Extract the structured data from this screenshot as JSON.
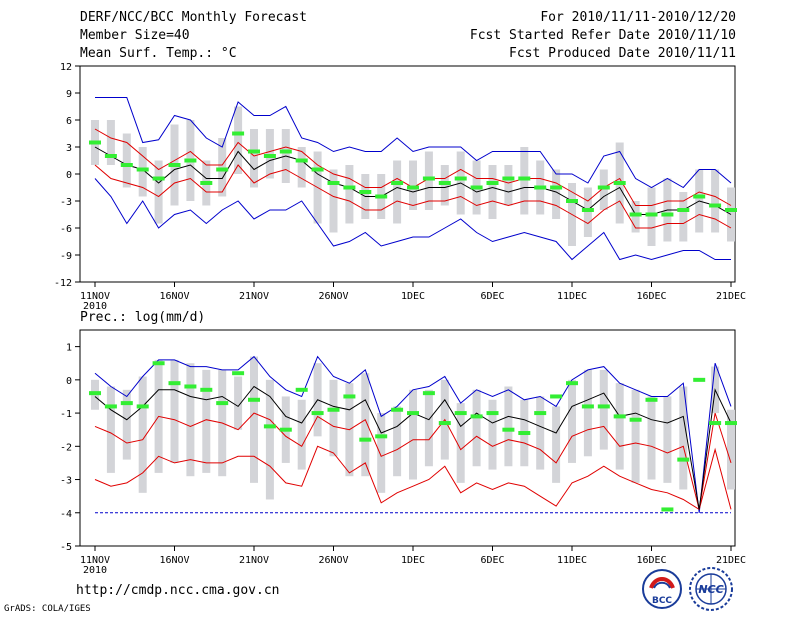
{
  "header": {
    "title": "DERF/NCC/BCC Monthly Forecast",
    "member_size": "Member Size=40",
    "variable": "Mean Surf. Temp.: °C",
    "period": "For 2010/11/11-2010/12/20",
    "started": "Fcst Started Refer Date 2010/11/10",
    "produced": "Fcst Produced Date 2010/11/11"
  },
  "footer": {
    "url": "http://cmdp.ncc.cma.gov.cn",
    "credit": "GrADS: COLA/IGES",
    "logo_bcc": "BCC",
    "logo_ncc": "NCC"
  },
  "colors": {
    "mean": "#000000",
    "spread": "#e00000",
    "extreme": "#0000cc",
    "box": "#d3d4d8",
    "median": "#33ee33"
  },
  "chart_data": [
    {
      "type": "box-ensemble",
      "title": "Mean Surf. Temp.: °C",
      "xlabel": "",
      "ylabel": "°C",
      "ylim": [
        -12,
        12
      ],
      "yticks": [
        12,
        9,
        6,
        3,
        0,
        -3,
        -6,
        -9,
        -12
      ],
      "x_days": 40,
      "xticks": [
        {
          "day": 1,
          "label": "11NOV",
          "sub": "2010"
        },
        {
          "day": 6,
          "label": "16NOV"
        },
        {
          "day": 11,
          "label": "21NOV"
        },
        {
          "day": 16,
          "label": "26NOV"
        },
        {
          "day": 21,
          "label": "1DEC"
        },
        {
          "day": 26,
          "label": "6DEC"
        },
        {
          "day": 31,
          "label": "11DEC"
        },
        {
          "day": 36,
          "label": "16DEC"
        },
        {
          "day": 41,
          "label": "21DEC"
        }
      ],
      "mean": [
        3.0,
        2.0,
        1.0,
        0.5,
        -1.0,
        0.5,
        1.0,
        -0.5,
        -0.5,
        2.5,
        0.5,
        1.5,
        2.0,
        1.5,
        0.0,
        -1.0,
        -1.5,
        -2.5,
        -2.5,
        -1.5,
        -2.0,
        -1.5,
        -1.5,
        -1.0,
        -2.0,
        -1.5,
        -2.0,
        -1.5,
        -1.5,
        -2.0,
        -3.0,
        -4.0,
        -2.5,
        -1.5,
        -4.5,
        -4.5,
        -4.0,
        -4.0,
        -3.0,
        -3.5,
        -4.5
      ],
      "upper_spread": [
        5.0,
        4.0,
        3.5,
        2.0,
        0.5,
        1.5,
        2.5,
        1.0,
        1.0,
        3.5,
        2.0,
        2.5,
        3.0,
        2.5,
        1.0,
        0.0,
        -0.5,
        -1.5,
        -1.5,
        -0.5,
        -1.5,
        -0.5,
        -0.5,
        0.5,
        -0.5,
        -0.5,
        -1.0,
        -0.5,
        -0.5,
        -1.0,
        -2.0,
        -3.0,
        -1.5,
        -0.5,
        -3.5,
        -3.5,
        -3.0,
        -3.0,
        -2.0,
        -2.5,
        -3.5
      ],
      "lower_spread": [
        1.0,
        -0.5,
        -1.0,
        -1.5,
        -2.5,
        -1.0,
        -0.5,
        -2.0,
        -2.0,
        1.0,
        -1.0,
        0.0,
        0.5,
        -0.5,
        -1.5,
        -2.5,
        -3.0,
        -4.0,
        -4.0,
        -3.0,
        -3.5,
        -3.0,
        -3.0,
        -2.5,
        -3.5,
        -3.0,
        -3.5,
        -3.0,
        -3.0,
        -3.5,
        -4.5,
        -5.5,
        -4.0,
        -3.0,
        -6.0,
        -6.0,
        -5.5,
        -5.5,
        -4.5,
        -5.0,
        -6.0
      ],
      "upper_extreme": [
        8.5,
        8.5,
        8.5,
        3.5,
        3.8,
        6.5,
        6.0,
        4.0,
        3.0,
        8.0,
        6.5,
        6.5,
        7.5,
        4.0,
        3.5,
        2.5,
        3.0,
        2.5,
        2.5,
        4.0,
        2.5,
        3.0,
        3.0,
        3.0,
        1.5,
        2.5,
        2.5,
        2.5,
        2.5,
        0.0,
        0.0,
        -1.0,
        2.0,
        2.5,
        -0.5,
        -1.5,
        -0.5,
        -1.5,
        0.5,
        0.5,
        -1.0
      ],
      "lower_extreme": [
        -0.5,
        -2.5,
        -5.5,
        -3.0,
        -6.0,
        -4.5,
        -4.0,
        -5.5,
        -4.0,
        -3.0,
        -5.0,
        -4.0,
        -4.0,
        -3.0,
        -5.5,
        -8.0,
        -7.5,
        -6.5,
        -8.0,
        -7.5,
        -7.0,
        -7.0,
        -6.0,
        -5.0,
        -6.5,
        -7.5,
        -7.0,
        -6.5,
        -7.0,
        -7.5,
        -9.5,
        -8.0,
        -6.5,
        -9.5,
        -9.0,
        -9.5,
        -9.0,
        -8.5,
        -8.5,
        -9.5,
        -9.5
      ],
      "box_max": [
        6.0,
        6.0,
        4.5,
        3.0,
        1.5,
        5.5,
        6.0,
        1.5,
        4.0,
        7.5,
        5.0,
        5.0,
        5.0,
        3.0,
        2.5,
        0.5,
        1.0,
        0.0,
        0.0,
        1.5,
        1.5,
        2.5,
        1.0,
        2.5,
        1.5,
        1.0,
        1.0,
        3.0,
        1.5,
        0.5,
        -1.0,
        -1.5,
        0.5,
        3.5,
        -3.0,
        -1.5,
        -0.5,
        -2.0,
        0.5,
        0.5,
        -1.5
      ],
      "box_min": [
        1.0,
        1.0,
        -1.5,
        -2.5,
        -5.5,
        -3.5,
        -3.0,
        -3.5,
        -2.5,
        0.0,
        -1.5,
        -0.5,
        -1.0,
        -1.5,
        -5.5,
        -6.5,
        -5.5,
        -5.0,
        -5.0,
        -5.5,
        -4.0,
        -4.0,
        -3.5,
        -4.5,
        -4.5,
        -5.0,
        -3.5,
        -4.5,
        -4.5,
        -5.0,
        -8.0,
        -7.0,
        -4.0,
        -5.5,
        -6.5,
        -8.0,
        -7.5,
        -7.5,
        -6.5,
        -6.5,
        -7.5
      ],
      "median": [
        3.5,
        2.0,
        1.0,
        0.5,
        -0.5,
        1.0,
        1.5,
        -1.0,
        0.5,
        4.5,
        2.5,
        2.0,
        2.5,
        1.5,
        0.5,
        -1.0,
        -1.5,
        -2.0,
        -2.5,
        -1.0,
        -1.5,
        -0.5,
        -1.0,
        -0.5,
        -1.5,
        -1.0,
        -0.5,
        -0.5,
        -1.5,
        -1.5,
        -3.0,
        -4.0,
        -1.5,
        -1.0,
        -4.5,
        -4.5,
        -4.5,
        -4.0,
        -2.5,
        -3.5,
        -4.0
      ]
    },
    {
      "type": "box-ensemble",
      "title": "Prec.: log(mm/d)",
      "xlabel": "",
      "ylabel": "log(mm/d)",
      "ylim": [
        -5,
        1.5
      ],
      "yticks": [
        1,
        0,
        -1,
        -2,
        -3,
        -4,
        -5
      ],
      "x_days": 40,
      "xticks": [
        {
          "day": 1,
          "label": "11NOV",
          "sub": "2010"
        },
        {
          "day": 6,
          "label": "16NOV"
        },
        {
          "day": 11,
          "label": "21NOV"
        },
        {
          "day": 16,
          "label": "26NOV"
        },
        {
          "day": 21,
          "label": "1DEC"
        },
        {
          "day": 26,
          "label": "6DEC"
        },
        {
          "day": 31,
          "label": "11DEC"
        },
        {
          "day": 36,
          "label": "16DEC"
        },
        {
          "day": 41,
          "label": "21DEC"
        }
      ],
      "mean": [
        -0.5,
        -0.9,
        -1.2,
        -0.8,
        -0.3,
        -0.3,
        -0.5,
        -0.6,
        -0.5,
        -0.8,
        -0.2,
        -0.5,
        -1.1,
        -1.3,
        -0.6,
        -0.8,
        -0.9,
        -0.6,
        -1.6,
        -1.4,
        -1.0,
        -1.2,
        -0.6,
        -1.4,
        -1.0,
        -1.3,
        -1.1,
        -1.2,
        -1.4,
        -1.6,
        -0.8,
        -0.6,
        -0.4,
        -1.1,
        -1.0,
        -1.2,
        -1.3,
        -1.1,
        -3.9,
        -0.3,
        -1.3
      ],
      "upper_spread": [
        -1.4,
        -1.6,
        -1.9,
        -1.8,
        -1.1,
        -1.2,
        -1.4,
        -1.2,
        -1.3,
        -1.5,
        -1.0,
        -1.2,
        -1.7,
        -2.0,
        -1.1,
        -1.4,
        -1.5,
        -1.2,
        -2.3,
        -2.1,
        -1.8,
        -1.8,
        -1.2,
        -2.1,
        -1.7,
        -2.0,
        -1.8,
        -1.9,
        -2.1,
        -2.5,
        -1.7,
        -1.5,
        -1.4,
        -2.0,
        -1.9,
        -2.0,
        -2.2,
        -2.0,
        -3.9,
        -1.0,
        -2.5
      ],
      "lower_spread": [
        -3.0,
        -3.2,
        -3.1,
        -2.8,
        -2.3,
        -2.5,
        -2.4,
        -2.5,
        -2.5,
        -2.3,
        -2.3,
        -2.6,
        -3.1,
        -3.2,
        -2.0,
        -2.2,
        -2.8,
        -2.5,
        -3.7,
        -3.4,
        -3.2,
        -3.0,
        -2.6,
        -3.4,
        -3.1,
        -3.3,
        -3.1,
        -3.2,
        -3.5,
        -3.8,
        -3.1,
        -2.9,
        -2.6,
        -2.9,
        -3.1,
        -3.3,
        -3.4,
        -3.6,
        -3.9,
        -2.1,
        -3.9
      ],
      "upper_extreme": [
        0.2,
        -0.2,
        -0.5,
        0.1,
        0.6,
        0.6,
        0.4,
        0.4,
        0.3,
        0.3,
        0.7,
        0.1,
        -0.3,
        -0.5,
        0.7,
        0.1,
        -0.1,
        0.3,
        -1.1,
        -0.8,
        -0.3,
        -0.2,
        0.1,
        -0.7,
        -0.3,
        -0.5,
        -0.3,
        -0.6,
        -0.5,
        -0.8,
        0.0,
        0.3,
        0.4,
        -0.1,
        -0.3,
        -0.5,
        -0.5,
        -0.1,
        -4.0,
        0.5,
        -0.8
      ],
      "lower_extreme": [
        -4.0,
        -4.0,
        -4.0,
        -4.0,
        -4.0,
        -4.0,
        -4.0,
        -4.0,
        -4.0,
        -4.0,
        -4.0,
        -4.0,
        -4.0,
        -4.0,
        -4.0,
        -4.0,
        -4.0,
        -4.0,
        -4.0,
        -4.0,
        -4.0,
        -4.0,
        -4.0,
        -4.0,
        -4.0,
        -4.0,
        -4.0,
        -4.0,
        -4.0,
        -4.0,
        -4.0,
        -4.0,
        -4.0,
        -4.0,
        -4.0,
        -4.0,
        -4.0,
        -4.0,
        -4.0,
        -4.0,
        -4.0
      ],
      "box_max": [
        0.0,
        -0.2,
        -0.3,
        0.1,
        0.6,
        0.6,
        0.5,
        0.3,
        0.3,
        0.1,
        0.7,
        0.0,
        -0.5,
        -0.6,
        0.5,
        0.0,
        -0.1,
        0.2,
        -1.0,
        -0.8,
        -0.3,
        -0.3,
        0.0,
        -0.7,
        -0.3,
        -0.6,
        -0.2,
        -0.6,
        -0.5,
        -0.8,
        0.0,
        0.3,
        0.3,
        -0.1,
        -0.3,
        -0.5,
        -0.5,
        -0.2,
        -3.9,
        0.4,
        -0.9
      ],
      "box_min": [
        -0.9,
        -2.8,
        -2.4,
        -3.4,
        -2.8,
        -2.5,
        -2.9,
        -2.8,
        -2.9,
        -1.5,
        -3.1,
        -3.6,
        -2.5,
        -2.7,
        -1.7,
        -2.3,
        -2.9,
        -2.9,
        -3.4,
        -2.9,
        -3.0,
        -2.6,
        -2.4,
        -3.1,
        -2.6,
        -2.7,
        -2.6,
        -2.6,
        -2.7,
        -3.1,
        -2.5,
        -2.3,
        -2.1,
        -2.7,
        -3.1,
        -3.0,
        -3.1,
        -3.3,
        -3.9,
        -1.0,
        -3.3
      ],
      "median": [
        -0.4,
        -0.8,
        -0.7,
        -0.8,
        0.5,
        -0.1,
        -0.2,
        -0.3,
        -0.7,
        0.2,
        -0.6,
        -1.4,
        -1.5,
        -0.3,
        -1.0,
        -0.9,
        -0.5,
        -1.8,
        -1.7,
        -0.9,
        -1.0,
        -0.4,
        -1.3,
        -1.0,
        -1.1,
        -1.0,
        -1.5,
        -1.6,
        -1.0,
        -0.5,
        -0.1,
        -0.8,
        -0.8,
        -1.1,
        -1.2,
        -0.6,
        -3.9,
        -2.4,
        0.0,
        -1.3,
        -1.3
      ]
    }
  ]
}
